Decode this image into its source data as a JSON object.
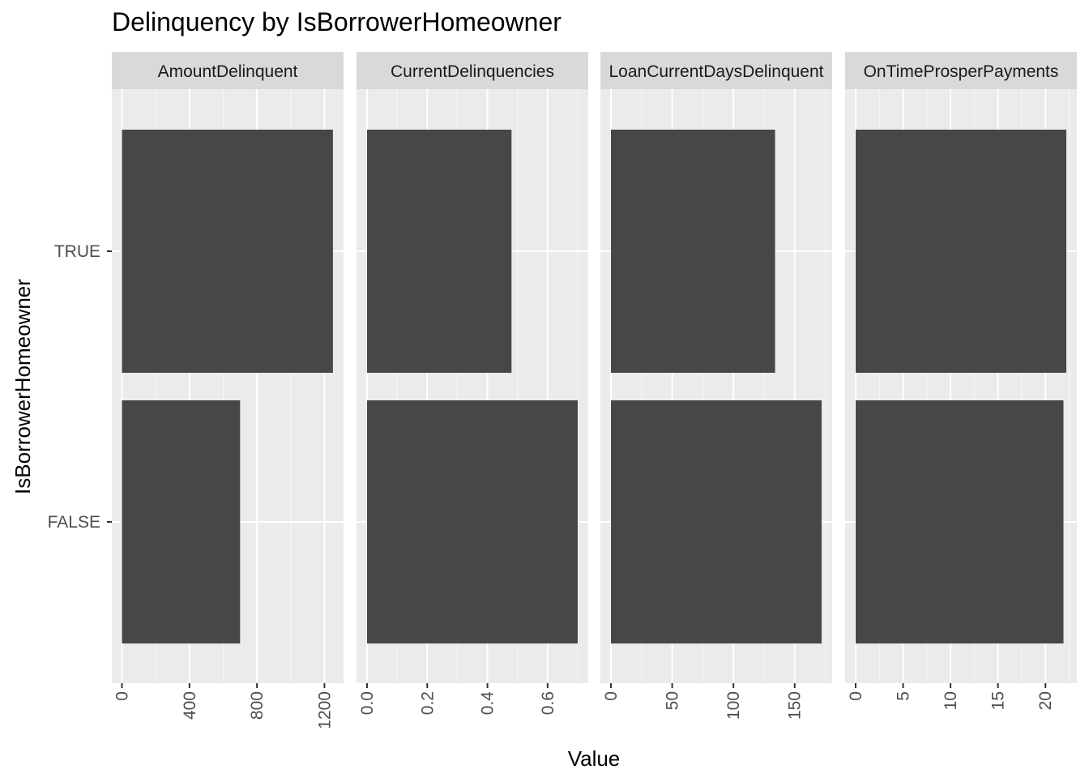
{
  "chart_data": {
    "type": "bar",
    "orientation": "horizontal",
    "title": "Delinquency by IsBorrowerHomeowner",
    "xlabel": "Value",
    "ylabel": "IsBorrowerHomeowner",
    "categories": [
      "TRUE",
      "FALSE"
    ],
    "grid": true,
    "legend": "none",
    "colors": {
      "bar": "#474747",
      "panel_background": "#ebebeb",
      "strip_background": "#d9d9d9",
      "grid": "#ffffff"
    },
    "facets": [
      {
        "name": "AmountDelinquent",
        "label": "AmountDelinquent",
        "values": [
          1250,
          700
        ],
        "xlim": [
          -60,
          1313
        ],
        "major_ticks": [
          0,
          400,
          800,
          1200
        ],
        "tick_labels": [
          "0",
          "400",
          "800",
          "1200"
        ]
      },
      {
        "name": "CurrentDelinquencies",
        "label": "CurrentDelinquencies",
        "values": [
          0.48,
          0.7
        ],
        "xlim": [
          -0.035,
          0.735
        ],
        "major_ticks": [
          0,
          0.2,
          0.4,
          0.6
        ],
        "tick_labels": [
          "0.0",
          "0.2",
          "0.4",
          "0.6"
        ]
      },
      {
        "name": "LoanCurrentDaysDelinquent",
        "label": "LoanCurrentDaysDelinquent",
        "values": [
          134,
          172
        ],
        "xlim": [
          -8.6,
          180.6
        ],
        "major_ticks": [
          0,
          50,
          100,
          150
        ],
        "tick_labels": [
          "0",
          "50",
          "100",
          "150"
        ]
      },
      {
        "name": "OnTimeProsperPayments",
        "label": "OnTimeProsperPayments",
        "values": [
          22.2,
          21.9
        ],
        "xlim": [
          -1.11,
          23.31
        ],
        "major_ticks": [
          0,
          5,
          10,
          15,
          20
        ],
        "tick_labels": [
          "0",
          "5",
          "10",
          "15",
          "20"
        ]
      }
    ]
  }
}
